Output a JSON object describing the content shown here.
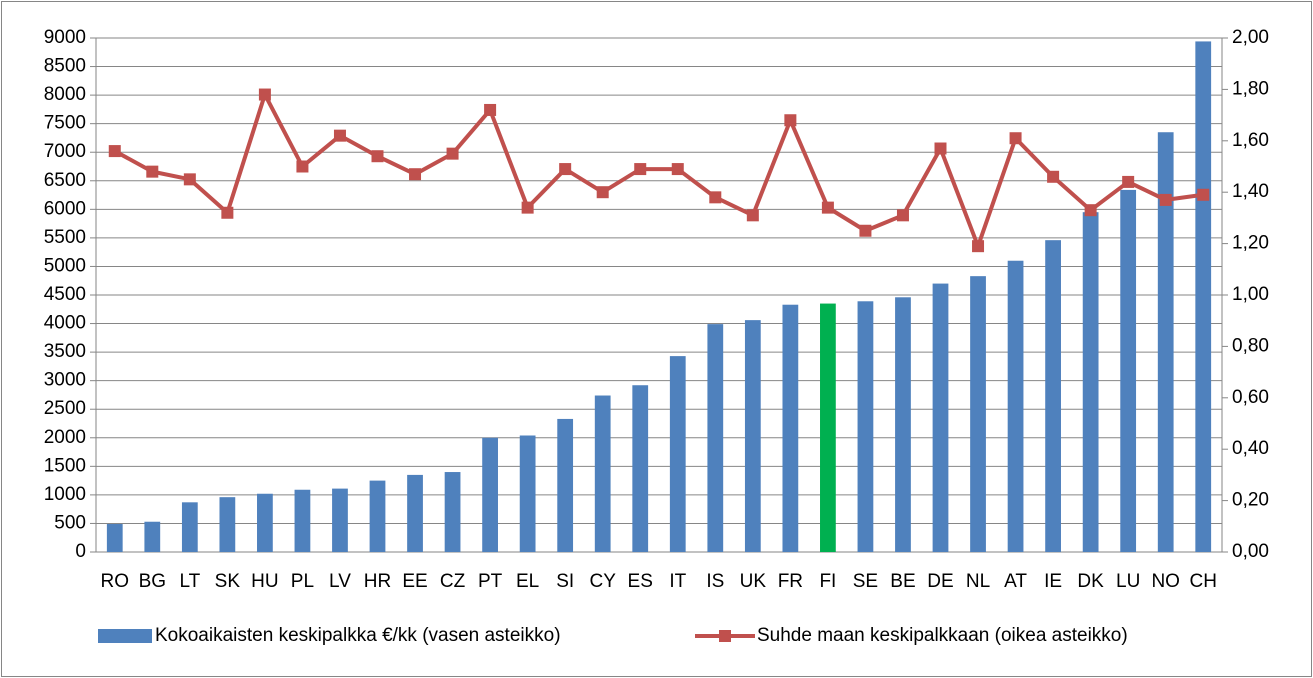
{
  "chart_data": {
    "type": "bar_line",
    "categories": [
      "RO",
      "BG",
      "LT",
      "SK",
      "HU",
      "PL",
      "LV",
      "HR",
      "EE",
      "CZ",
      "PT",
      "EL",
      "SI",
      "CY",
      "ES",
      "IT",
      "IS",
      "UK",
      "FR",
      "FI",
      "SE",
      "BE",
      "DE",
      "NL",
      "AT",
      "IE",
      "DK",
      "LU",
      "NO",
      "CH"
    ],
    "series": [
      {
        "name": "Kokoaikaisten keskipalkka €/kk (vasen asteikko)",
        "type": "bar",
        "color": "#4f81bd",
        "highlight": {
          "category": "FI",
          "color": "#00b050"
        },
        "values": [
          490,
          530,
          870,
          960,
          1020,
          1090,
          1110,
          1250,
          1350,
          1400,
          2000,
          2040,
          2330,
          2740,
          2920,
          3430,
          3990,
          4060,
          4330,
          4350,
          4390,
          4460,
          4700,
          4830,
          5100,
          5460,
          5950,
          6340,
          7350,
          8940
        ]
      },
      {
        "name": "Suhde maan keskipalkkaan (oikea asteikko)",
        "type": "line",
        "axis": "y2",
        "color": "#c0504d",
        "values": [
          1.56,
          1.48,
          1.45,
          1.32,
          1.78,
          1.5,
          1.62,
          1.54,
          1.47,
          1.55,
          1.72,
          1.34,
          1.49,
          1.4,
          1.49,
          1.49,
          1.38,
          1.31,
          1.68,
          1.34,
          1.25,
          1.31,
          1.57,
          1.19,
          1.61,
          1.46,
          1.33,
          1.44,
          1.37,
          1.39
        ]
      }
    ],
    "ylim": [
      0,
      9000
    ],
    "yticks": [
      0,
      500,
      1000,
      1500,
      2000,
      2500,
      3000,
      3500,
      4000,
      4500,
      5000,
      5500,
      6000,
      6500,
      7000,
      7500,
      8000,
      8500,
      9000
    ],
    "y2lim": [
      0,
      2
    ],
    "y2ticks": [
      {
        "value": 0,
        "label": "0,00"
      },
      {
        "value": 0.2,
        "label": "0,20"
      },
      {
        "value": 0.4,
        "label": "0,40"
      },
      {
        "value": 0.6,
        "label": "0,60"
      },
      {
        "value": 0.8,
        "label": "0,80"
      },
      {
        "value": 1,
        "label": "1,00"
      },
      {
        "value": 1.2,
        "label": "1,20"
      },
      {
        "value": 1.4,
        "label": "1,40"
      },
      {
        "value": 1.6,
        "label": "1,60"
      },
      {
        "value": 1.8,
        "label": "1,80"
      },
      {
        "value": 2,
        "label": "2,00"
      }
    ],
    "grid": true,
    "legend": "bottom"
  }
}
